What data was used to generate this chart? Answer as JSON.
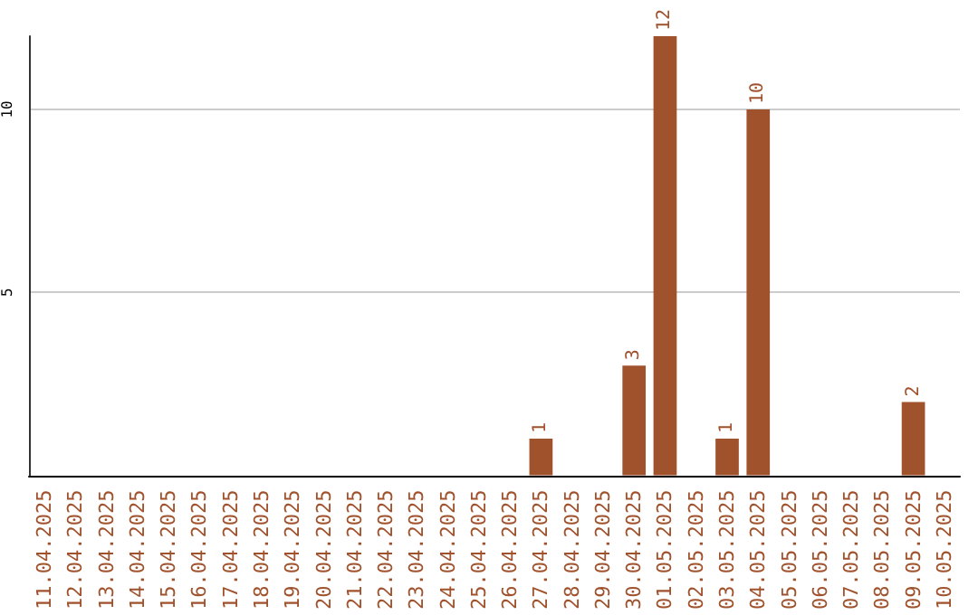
{
  "chart_data": {
    "type": "bar",
    "categories": [
      "11.04.2025",
      "12.04.2025",
      "13.04.2025",
      "14.04.2025",
      "15.04.2025",
      "16.04.2025",
      "17.04.2025",
      "18.04.2025",
      "19.04.2025",
      "20.04.2025",
      "21.04.2025",
      "22.04.2025",
      "23.04.2025",
      "24.04.2025",
      "25.04.2025",
      "26.04.2025",
      "27.04.2025",
      "28.04.2025",
      "29.04.2025",
      "30.04.2025",
      "01.05.2025",
      "02.05.2025",
      "03.05.2025",
      "04.05.2025",
      "05.05.2025",
      "06.05.2025",
      "07.05.2025",
      "08.05.2025",
      "09.05.2025",
      "10.05.2025"
    ],
    "values": [
      null,
      null,
      null,
      null,
      null,
      null,
      null,
      null,
      null,
      null,
      null,
      null,
      null,
      null,
      null,
      null,
      1,
      null,
      null,
      3,
      12,
      null,
      1,
      10,
      null,
      null,
      null,
      null,
      2,
      null
    ],
    "color": "#a0522d",
    "ylim": [
      0,
      12
    ],
    "yticks": [
      5,
      10
    ],
    "grid": "y",
    "data_labels": true
  }
}
